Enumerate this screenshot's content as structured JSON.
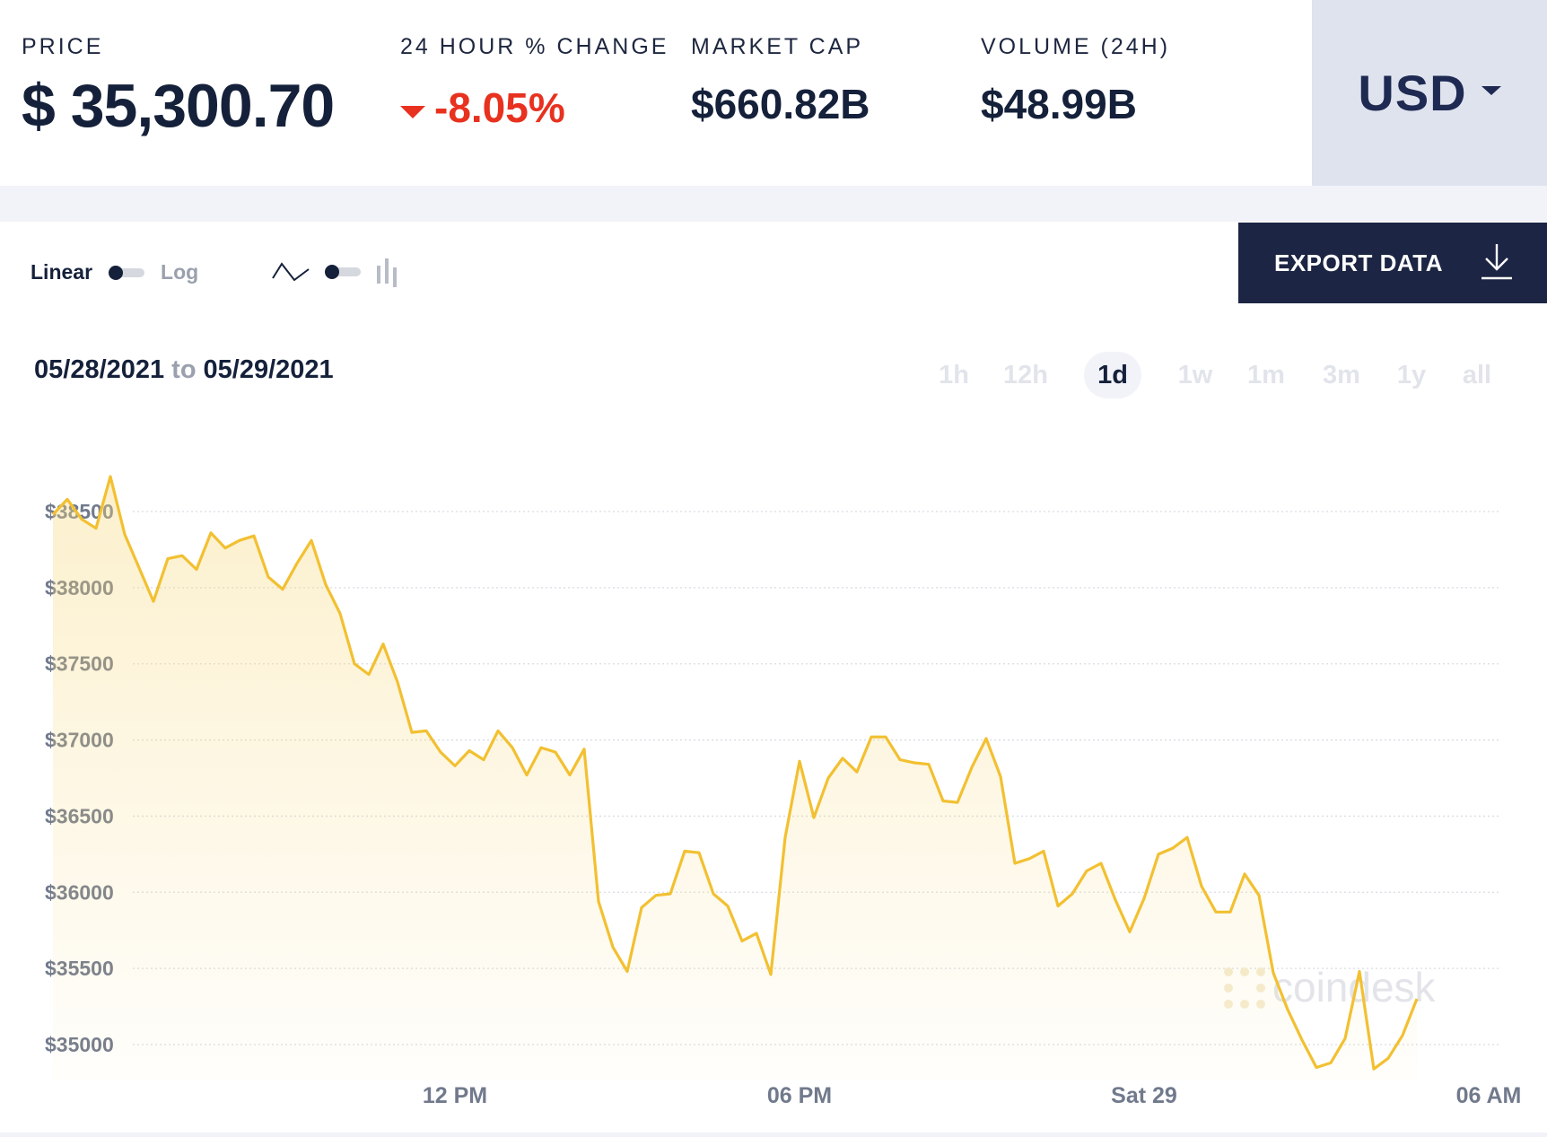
{
  "stats": {
    "price": {
      "label": "PRICE",
      "value": "$ 35,300.70"
    },
    "change": {
      "label": "24 HOUR % CHANGE",
      "value": "-8.05%"
    },
    "market_cap": {
      "label": "MARKET CAP",
      "value": "$660.82B"
    },
    "volume": {
      "label": "VOLUME (24H)",
      "value": "$48.99B"
    }
  },
  "currency": {
    "label": "USD",
    "icon": "caret-down-icon"
  },
  "controls": {
    "scale_linear": "Linear",
    "scale_log": "Log",
    "scale_mode": "linear",
    "chart_mode": "line",
    "line_icon": "line-chart-icon",
    "candle_icon": "candlestick-chart-icon"
  },
  "export": {
    "label": "EXPORT DATA",
    "icon": "download-icon"
  },
  "date_range": {
    "from": "05/28/2021",
    "to_word": "to",
    "to": "05/29/2021"
  },
  "ranges": {
    "items": [
      "1h",
      "12h",
      "1d",
      "1w",
      "1m",
      "3m",
      "1y",
      "all"
    ],
    "active": "1d"
  },
  "watermark": "coindesk",
  "colors": {
    "line": "#f2c031",
    "negative": "#e8311f",
    "navy": "#1c2543"
  },
  "chart_data": {
    "type": "area",
    "title": "",
    "xlabel": "",
    "ylabel": "",
    "x_start": "2021-05-28 05:00",
    "x_step_minutes": 15,
    "xlim": [
      "2021-05-28 05:00",
      "2021-05-29 06:40"
    ],
    "x_ticks": [
      {
        "label": "12 PM",
        "t": "2021-05-28 12:00"
      },
      {
        "label": "06 PM",
        "t": "2021-05-28 18:00"
      },
      {
        "label": "Sat 29",
        "t": "2021-05-29 00:00"
      },
      {
        "label": "06 AM",
        "t": "2021-05-29 06:00"
      }
    ],
    "y_ticks": [
      "$35000",
      "$35500",
      "$36000",
      "$36500",
      "$37000",
      "$37500",
      "$38000",
      "$38500"
    ],
    "y_tick_values": [
      35000,
      35500,
      36000,
      36500,
      37000,
      37500,
      38000,
      38500
    ],
    "ylim": [
      34800,
      38700
    ],
    "grid": true,
    "series": [
      {
        "values": [
          38480,
          38580,
          38450,
          38390,
          38730,
          38350,
          38130,
          37910,
          38190,
          38210,
          38120,
          38360,
          38260,
          38310,
          38340,
          38070,
          37990,
          38160,
          38310,
          38020,
          37830,
          37500,
          37430,
          37630,
          37380,
          37050,
          37060,
          36920,
          36830,
          36930,
          36870,
          37060,
          36950,
          36770,
          36950,
          36920,
          36770,
          36940,
          35940,
          35640,
          35480,
          35900,
          35980,
          35990,
          36270,
          36260,
          35990,
          35910,
          35680,
          35730,
          35460,
          36360,
          36860,
          36490,
          36750,
          36880,
          36790,
          37020,
          37020,
          36870,
          36850,
          36840,
          36600,
          36590,
          36820,
          37010,
          36760,
          36190,
          36220,
          36270,
          35910,
          35990,
          36140,
          36190,
          35950,
          35740,
          35960,
          36250,
          36290,
          36360,
          36040,
          35870,
          35870,
          36120,
          35980,
          35470,
          35230,
          35030,
          34850,
          34880,
          35040,
          35480,
          34840,
          34910,
          35060,
          35300
        ]
      }
    ]
  }
}
